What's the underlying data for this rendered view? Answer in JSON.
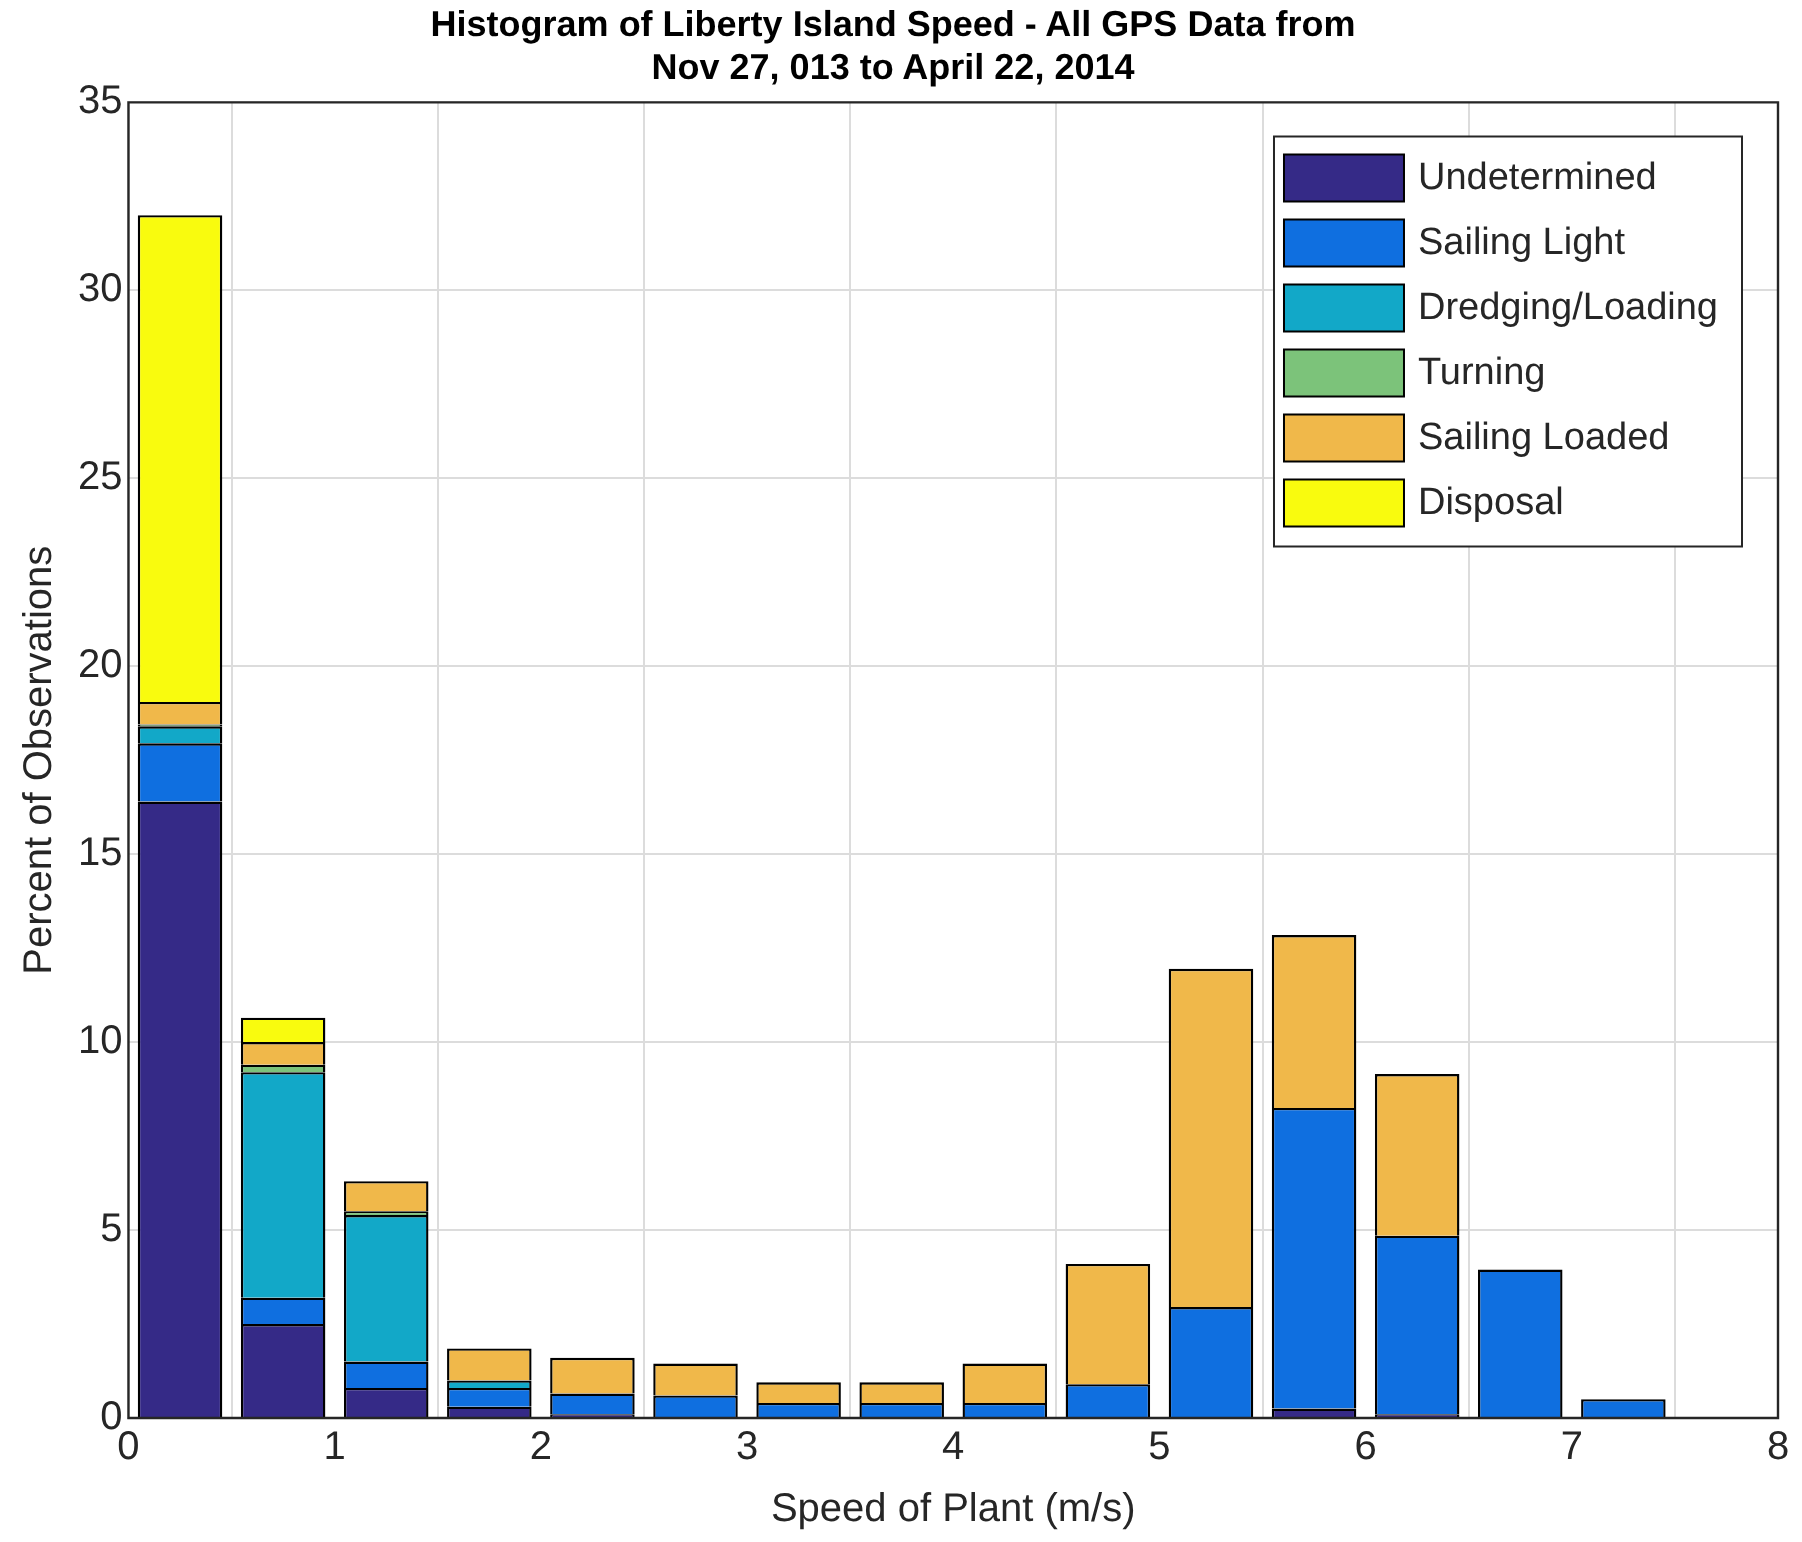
{
  "chart_data": {
    "type": "bar",
    "title": "Histogram of Liberty Island Speed - All GPS Data from\nNov 27, 013 to April 22, 2014",
    "xlabel": "Speed of Plant (m/s)",
    "ylabel": "Percent of Observations",
    "x": [
      0.25,
      0.75,
      1.25,
      1.75,
      2.25,
      2.75,
      3.25,
      3.75,
      4.25,
      4.75,
      5.25,
      5.75,
      6.25,
      6.75,
      7.25
    ],
    "stacked": true,
    "series": [
      {
        "name": "Undetermined",
        "color": "#352a87",
        "values": [
          16.4,
          2.5,
          0.8,
          0.3,
          0.1,
          0,
          0,
          0,
          0,
          0,
          0,
          0.25,
          0.1,
          0,
          0
        ]
      },
      {
        "name": "Sailing Light",
        "color": "#0f6fe0",
        "values": [
          1.55,
          0.7,
          0.7,
          0.5,
          0.55,
          0.6,
          0.4,
          0.4,
          0.4,
          0.9,
          2.95,
          8.0,
          4.75,
          3.95,
          0.5
        ]
      },
      {
        "name": "Dredging/Loading",
        "color": "#12a8c8",
        "values": [
          0.45,
          6.0,
          3.9,
          0.2,
          0,
          0,
          0,
          0,
          0,
          0,
          0,
          0,
          0,
          0,
          0
        ]
      },
      {
        "name": "Turning",
        "color": "#7cc37a",
        "values": [
          0.05,
          0.2,
          0.1,
          0,
          0,
          0,
          0,
          0,
          0,
          0,
          0,
          0,
          0,
          0,
          0
        ]
      },
      {
        "name": "Sailing Loaded",
        "color": "#f0b84a",
        "values": [
          0.6,
          0.6,
          0.8,
          0.85,
          0.95,
          0.85,
          0.55,
          0.55,
          1.05,
          3.2,
          9.0,
          4.6,
          4.3,
          0,
          0
        ]
      },
      {
        "name": "Disposal",
        "color": "#f9fb0e",
        "values": [
          12.95,
          0.65,
          0,
          0,
          0,
          0,
          0,
          0,
          0,
          0,
          0,
          0,
          0,
          0,
          0
        ]
      }
    ],
    "xlim": [
      0,
      8
    ],
    "xticks": [
      0,
      1,
      2,
      3,
      4,
      5,
      6,
      7,
      8
    ],
    "ylim": [
      0,
      35
    ],
    "yticks": [
      0,
      5,
      10,
      15,
      20,
      25,
      30,
      35
    ],
    "grid": true,
    "legend": "top right"
  }
}
